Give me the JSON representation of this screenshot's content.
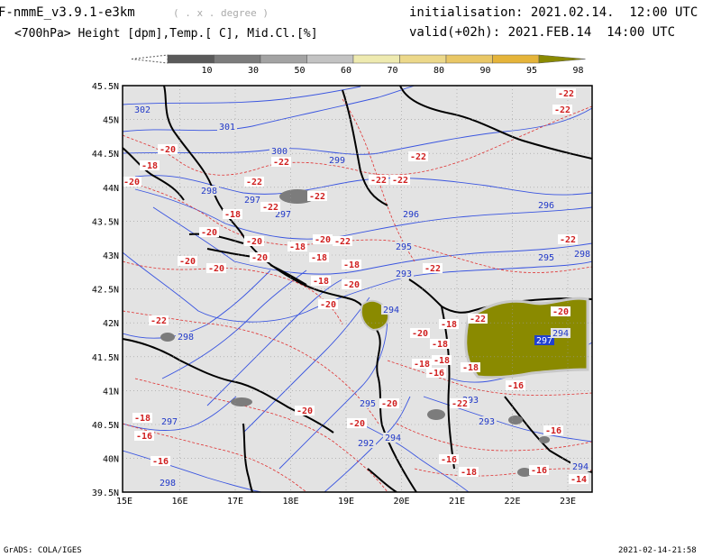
{
  "header": {
    "model": "F-nmmE_v3.9.1-e3km",
    "unit_note": "( . x . degree )",
    "variables": "<700hPa> Height [dpm],Temp.[ C], Mid.Cl.[%]",
    "init": "initialisation: 2021.02.14.  12:00 UTC",
    "valid": "valid(+02h): 2021.FEB.14  14:00 UTC"
  },
  "colorbar": {
    "labels": [
      "10",
      "30",
      "50",
      "60",
      "70",
      "80",
      "90",
      "95",
      "98"
    ],
    "colors": [
      "#5a5a5a",
      "#7c7c7c",
      "#a3a3a3",
      "#c3c3c3",
      "#eeeab0",
      "#ecd88a",
      "#e9c766",
      "#e5b43a",
      "#8a8a00"
    ]
  },
  "axes": {
    "lat_labels": [
      "45.5N",
      "45N",
      "44.5N",
      "44N",
      "43.5N",
      "43N",
      "42.5N",
      "42N",
      "41.5N",
      "41N",
      "40.5N",
      "40N",
      "39.5N"
    ],
    "lon_labels": [
      "15E",
      "16E",
      "17E",
      "18E",
      "19E",
      "20E",
      "21E",
      "22E",
      "23E"
    ]
  },
  "contour_labels": {
    "height": [
      "302",
      "301",
      "300",
      "299",
      "298",
      "297",
      "296",
      "295",
      "294",
      "293",
      "292"
    ],
    "height_placed": [
      "302",
      "301",
      "300",
      "299",
      "298",
      "297",
      "297",
      "296",
      "296",
      "295",
      "295",
      "293",
      "294",
      "297",
      "298",
      "297",
      "295",
      "294",
      "293",
      "293",
      "292",
      "298",
      "294",
      "298",
      "294"
    ],
    "temp_placed": [
      "-20",
      "-18",
      "-20",
      "-22",
      "-22",
      "-22",
      "-22",
      "-22",
      "-18",
      "-22",
      "-22",
      "-20",
      "-20",
      "-20",
      "-20",
      "-22",
      "-18",
      "-20",
      "-20",
      "-18",
      "-18",
      "-20",
      "-18",
      "-20",
      "-22",
      "-22",
      "-18",
      "-18",
      "-20",
      "-18",
      "-18",
      "-16",
      "-18",
      "-20",
      "-20",
      "-16",
      "-18",
      "-20",
      "-22",
      "-16",
      "-18",
      "-16",
      "-16",
      "-16",
      "-14",
      "-22",
      "-22",
      "-22",
      "-20",
      "-22",
      "-16"
    ]
  },
  "footer": {
    "left": "GrADS: COLA/IGES",
    "right": "2021-02-14-21:58"
  }
}
